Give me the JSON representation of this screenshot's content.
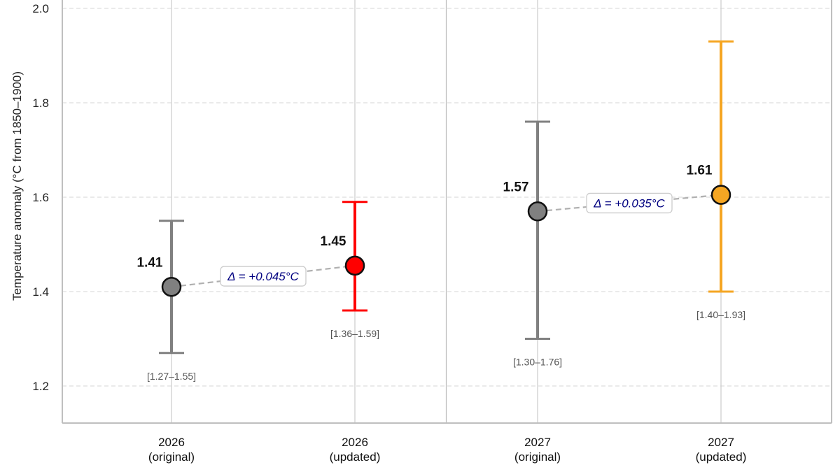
{
  "chart_data": {
    "type": "scatter",
    "title": "",
    "xlabel": "",
    "ylabel": "Temperature anomaly (°C from 1850–1900)",
    "ylim": [
      1.12,
      2.0
    ],
    "yticks": [
      "1.2",
      "1.4",
      "1.6",
      "1.8",
      "2.0"
    ],
    "grid": "horizontal-dashed",
    "categories": [
      {
        "line1": "2026",
        "line2": "(original)"
      },
      {
        "line1": "2026",
        "line2": "(updated)"
      },
      {
        "line1": "2027",
        "line2": "(original)"
      },
      {
        "line1": "2027",
        "line2": "(updated)"
      }
    ],
    "points": [
      {
        "value": 1.41,
        "low": 1.27,
        "high": 1.55,
        "value_label": "1.41",
        "range_label": "[1.27–1.55]",
        "color": "#808080"
      },
      {
        "value": 1.455,
        "low": 1.36,
        "high": 1.59,
        "value_label": "1.45",
        "range_label": "[1.36–1.59]",
        "color": "#ff0000"
      },
      {
        "value": 1.57,
        "low": 1.3,
        "high": 1.76,
        "value_label": "1.57",
        "range_label": "[1.30–1.76]",
        "color": "#808080"
      },
      {
        "value": 1.605,
        "low": 1.4,
        "high": 1.93,
        "value_label": "1.61",
        "range_label": "[1.40–1.93]",
        "color": "#f5a623"
      }
    ],
    "deltas": [
      {
        "from": 0,
        "to": 1,
        "label": "Δ = +0.045°C"
      },
      {
        "from": 2,
        "to": 3,
        "label": "Δ = +0.035°C"
      }
    ],
    "colors": {
      "original": "#808080",
      "updated_2026": "#ff0000",
      "updated_2027": "#f5a623",
      "delta_text": "#000080",
      "grid": "#dddddd",
      "range_text": "#555555"
    }
  }
}
